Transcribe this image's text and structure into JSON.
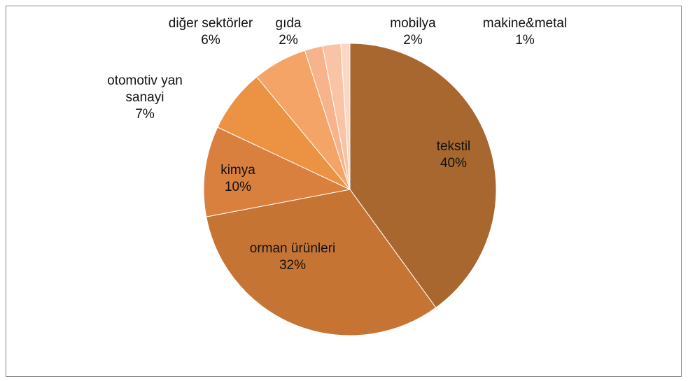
{
  "chart_data": {
    "type": "pie",
    "categories": [
      "tekstil",
      "orman ürünleri",
      "kimya",
      "otomotiv yan sanayi",
      "diğer sektörler",
      "gıda",
      "mobilya",
      "makine&metal"
    ],
    "values": [
      40,
      32,
      10,
      7,
      6,
      2,
      2,
      1
    ],
    "value_labels": [
      "40%",
      "32%",
      "10%",
      "7%",
      "6%",
      "2%",
      "2%",
      "1%"
    ],
    "colors": [
      "#a8672f",
      "#c67433",
      "#d9803f",
      "#ec9343",
      "#f5a467",
      "#f7b38c",
      "#f9c4a6",
      "#fbd7c6"
    ]
  }
}
